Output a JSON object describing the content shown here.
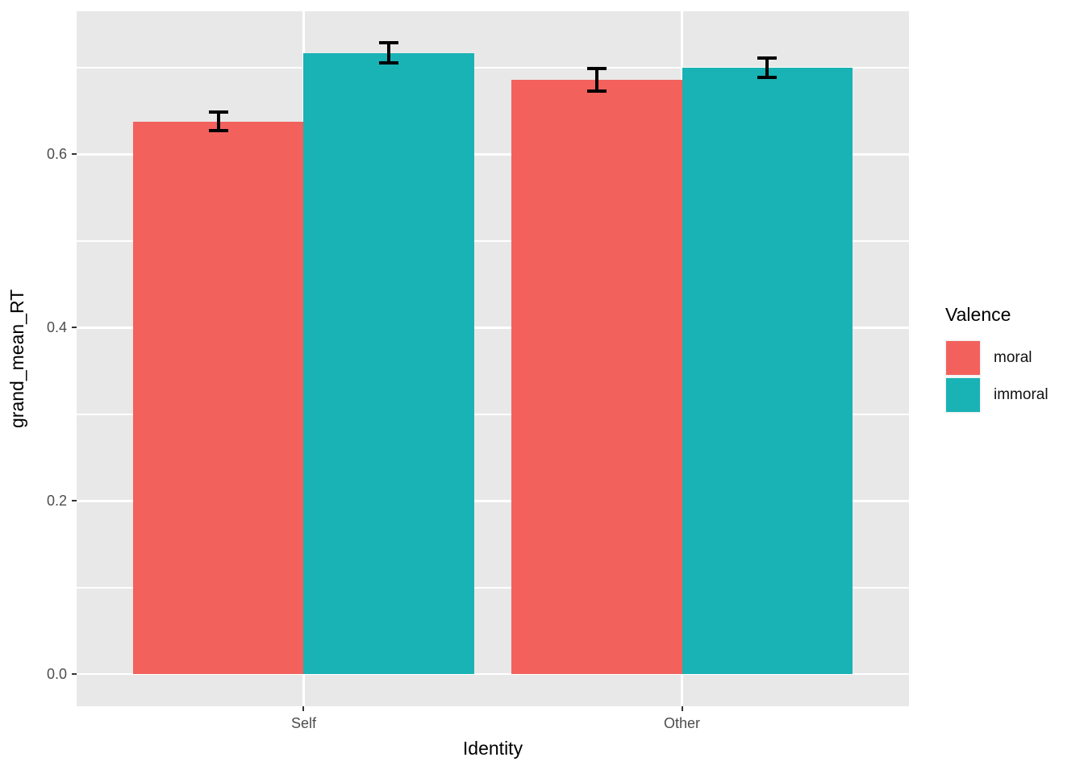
{
  "chart_data": {
    "type": "bar",
    "title": "",
    "xlabel": "Identity",
    "ylabel": "grand_mean_RT",
    "legend_title": "Valence",
    "legend_position": "right",
    "categories": [
      "Self",
      "Other"
    ],
    "series": [
      {
        "name": "moral",
        "color": "#F3615D",
        "values": [
          0.638,
          0.686
        ],
        "errors": [
          0.011,
          0.013
        ]
      },
      {
        "name": "immoral",
        "color": "#19B2B5",
        "values": [
          0.717,
          0.7
        ],
        "errors": [
          0.012,
          0.011
        ]
      }
    ],
    "error_bar_color": "#000000",
    "y_axis": {
      "ticks": [
        0.0,
        0.2,
        0.4,
        0.6
      ],
      "tick_labels": [
        "0.0",
        "0.2",
        "0.4",
        "0.6"
      ],
      "minor_ticks": [
        0.1,
        0.3,
        0.5,
        0.7
      ],
      "range": [
        -0.037,
        0.765
      ]
    },
    "x_axis": {
      "positions": [
        1,
        2
      ],
      "domain": [
        0.4,
        2.6
      ]
    },
    "grid": true,
    "bar_dodge_width": 0.9,
    "panel_bg": "#E8E8E8",
    "grid_color": "#FFFFFF",
    "tick_text_color": "#4D4D4D"
  }
}
